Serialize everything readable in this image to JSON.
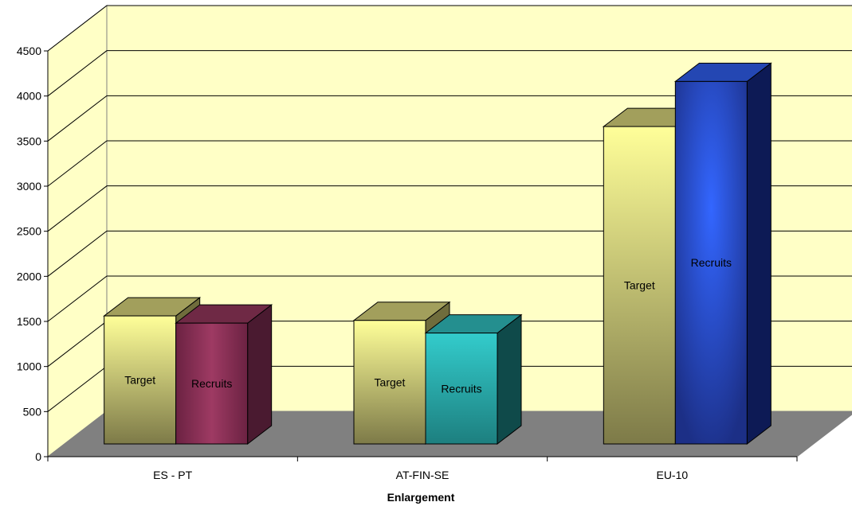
{
  "chart_data": {
    "type": "bar",
    "xlabel": "Enlargement",
    "ylabel": "",
    "ylim": [
      0,
      4500
    ],
    "ytick_step": 500,
    "grid": true,
    "categories": [
      "ES - PT",
      "AT-FIN-SE",
      "EU-10"
    ],
    "series": [
      {
        "name": "Target",
        "values": [
          1420,
          1370,
          3520
        ]
      },
      {
        "name": "Recruits",
        "values": [
          1340,
          1230,
          4020
        ]
      }
    ],
    "data_labels": [
      [
        "Target",
        "Recruits"
      ],
      [
        "Target",
        "Recruits"
      ],
      [
        "Target",
        "Recruits"
      ]
    ],
    "colors": {
      "plot_background": "#ffffc6",
      "floor": "#808080",
      "target": [
        "#ffff99",
        "#7d7a48"
      ],
      "recruits": [
        [
          "#9e3a63",
          "#6b2242",
          "#4a1a30"
        ],
        [
          "#33cccc",
          "#1d7f7f",
          "#0f4a4a"
        ],
        [
          "#3366ff",
          "#1c2f86",
          "#0d1a55"
        ]
      ]
    }
  }
}
